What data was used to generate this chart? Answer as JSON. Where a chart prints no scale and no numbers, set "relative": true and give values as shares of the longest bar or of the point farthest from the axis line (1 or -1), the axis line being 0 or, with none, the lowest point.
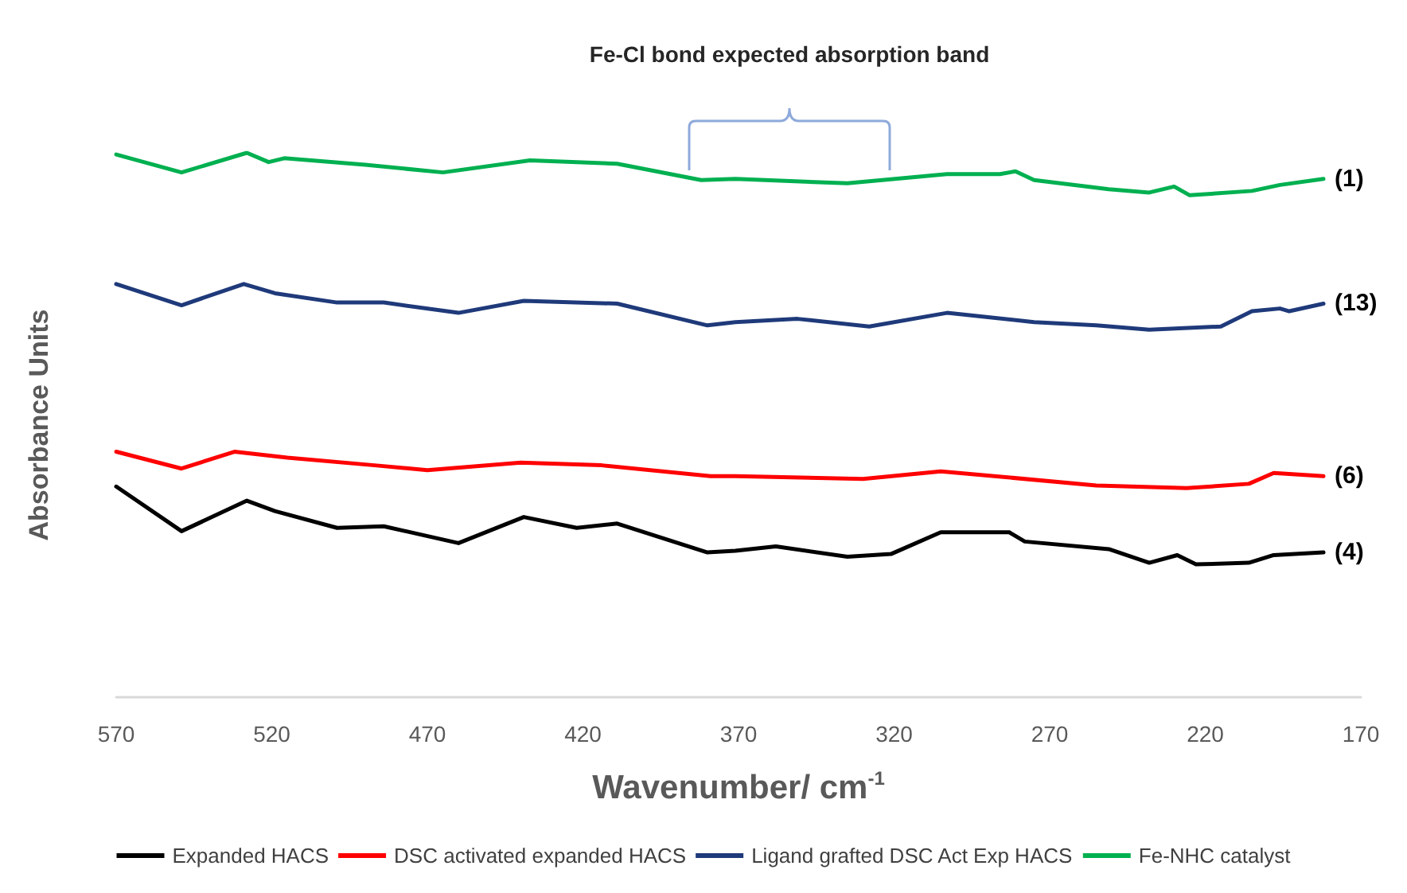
{
  "chart_data": {
    "type": "line",
    "relative": true,
    "xlabel": "Wavenumber/ cm$^{-1}$",
    "ylabel": "Absorbance Units",
    "xlim": [
      570,
      170
    ],
    "xticks": [
      570,
      520,
      470,
      420,
      370,
      320,
      270,
      220,
      170
    ],
    "grid": false,
    "legend": "bottom",
    "marker": "none",
    "line_style": "solid",
    "series": [
      {
        "name": "Expanded HACS",
        "color": "#000000",
        "x": [
          570,
          549,
          528,
          519,
          499,
          484,
          460,
          439,
          422,
          409,
          380,
          371,
          358,
          335,
          321,
          305,
          283,
          278,
          251,
          238,
          229,
          223,
          206,
          198,
          182
        ],
        "values": [
          0.387,
          0.305,
          0.361,
          0.342,
          0.311,
          0.314,
          0.283,
          0.331,
          0.311,
          0.319,
          0.266,
          0.269,
          0.277,
          0.258,
          0.263,
          0.303,
          0.303,
          0.286,
          0.272,
          0.247,
          0.261,
          0.244,
          0.247,
          0.261,
          0.266
        ]
      },
      {
        "name": "DSC activated expanded HACS",
        "color": "#ff0000",
        "x": [
          570,
          549,
          532,
          515,
          487,
          470,
          440,
          414,
          379,
          371,
          330,
          305,
          255,
          226,
          206,
          198,
          182
        ],
        "values": [
          0.451,
          0.42,
          0.451,
          0.44,
          0.426,
          0.417,
          0.431,
          0.426,
          0.406,
          0.406,
          0.401,
          0.415,
          0.389,
          0.384,
          0.392,
          0.412,
          0.406
        ]
      },
      {
        "name": "Ligand grafted DSC Act Exp HACS",
        "color": "#1f3a7a",
        "x": [
          570,
          549,
          529,
          519,
          499,
          484,
          460,
          439,
          409,
          380,
          371,
          351,
          328,
          303,
          275,
          255,
          238,
          215,
          205,
          196,
          193,
          182
        ],
        "values": [
          0.759,
          0.72,
          0.759,
          0.742,
          0.725,
          0.725,
          0.706,
          0.728,
          0.723,
          0.683,
          0.689,
          0.695,
          0.681,
          0.706,
          0.689,
          0.683,
          0.675,
          0.681,
          0.709,
          0.714,
          0.709,
          0.723
        ]
      },
      {
        "name": "Fe-NHC catalyst",
        "color": "#00b050",
        "x": [
          570,
          549,
          528,
          521,
          516,
          490,
          465,
          437,
          409,
          382,
          371,
          335,
          303,
          286,
          281,
          275,
          251,
          238,
          230,
          225,
          205,
          196,
          182
        ],
        "values": [
          0.997,
          0.964,
          1.0,
          0.983,
          0.99,
          0.978,
          0.964,
          0.986,
          0.98,
          0.95,
          0.952,
          0.944,
          0.961,
          0.961,
          0.966,
          0.95,
          0.933,
          0.927,
          0.938,
          0.922,
          0.93,
          0.941,
          0.952
        ]
      }
    ],
    "annotations": [
      "(1)",
      "(13)",
      "(6)",
      "(4)",
      "Fe-Cl bond expected absorption band"
    ]
  }
}
